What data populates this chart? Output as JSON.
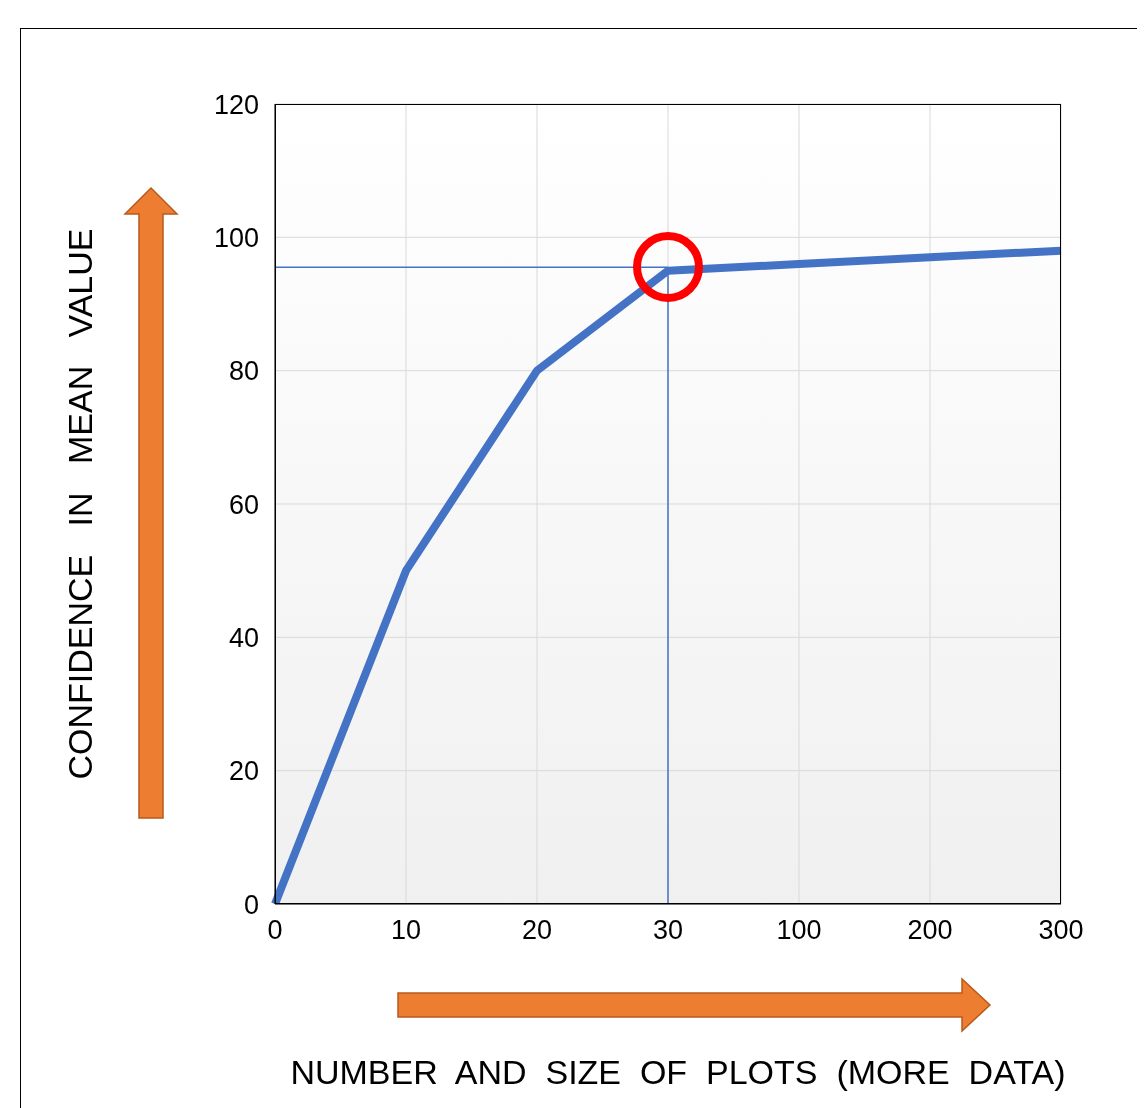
{
  "chart_data": {
    "type": "line",
    "xlabel": "NUMBER  AND  SIZE  OF  PLOTS  (MORE  DATA)",
    "ylabel": "CONFIDENCE   IN   MEAN   VALUE",
    "categories": [
      "0",
      "10",
      "20",
      "30",
      "100",
      "200",
      "300"
    ],
    "series": [
      {
        "color": "#4472c4",
        "values": [
          0,
          50,
          80,
          95,
          96,
          97,
          98
        ]
      }
    ],
    "ylim": [
      0,
      120
    ],
    "yticks": [
      0,
      20,
      40,
      60,
      80,
      100,
      120
    ],
    "grid": true,
    "marker": "none",
    "line_style": "solid",
    "ref_lines": [
      {
        "axis": "y",
        "value": 95.5,
        "color": "#4472c4"
      },
      {
        "axis": "x",
        "value": "30",
        "color": "#4472c4"
      }
    ]
  }
}
